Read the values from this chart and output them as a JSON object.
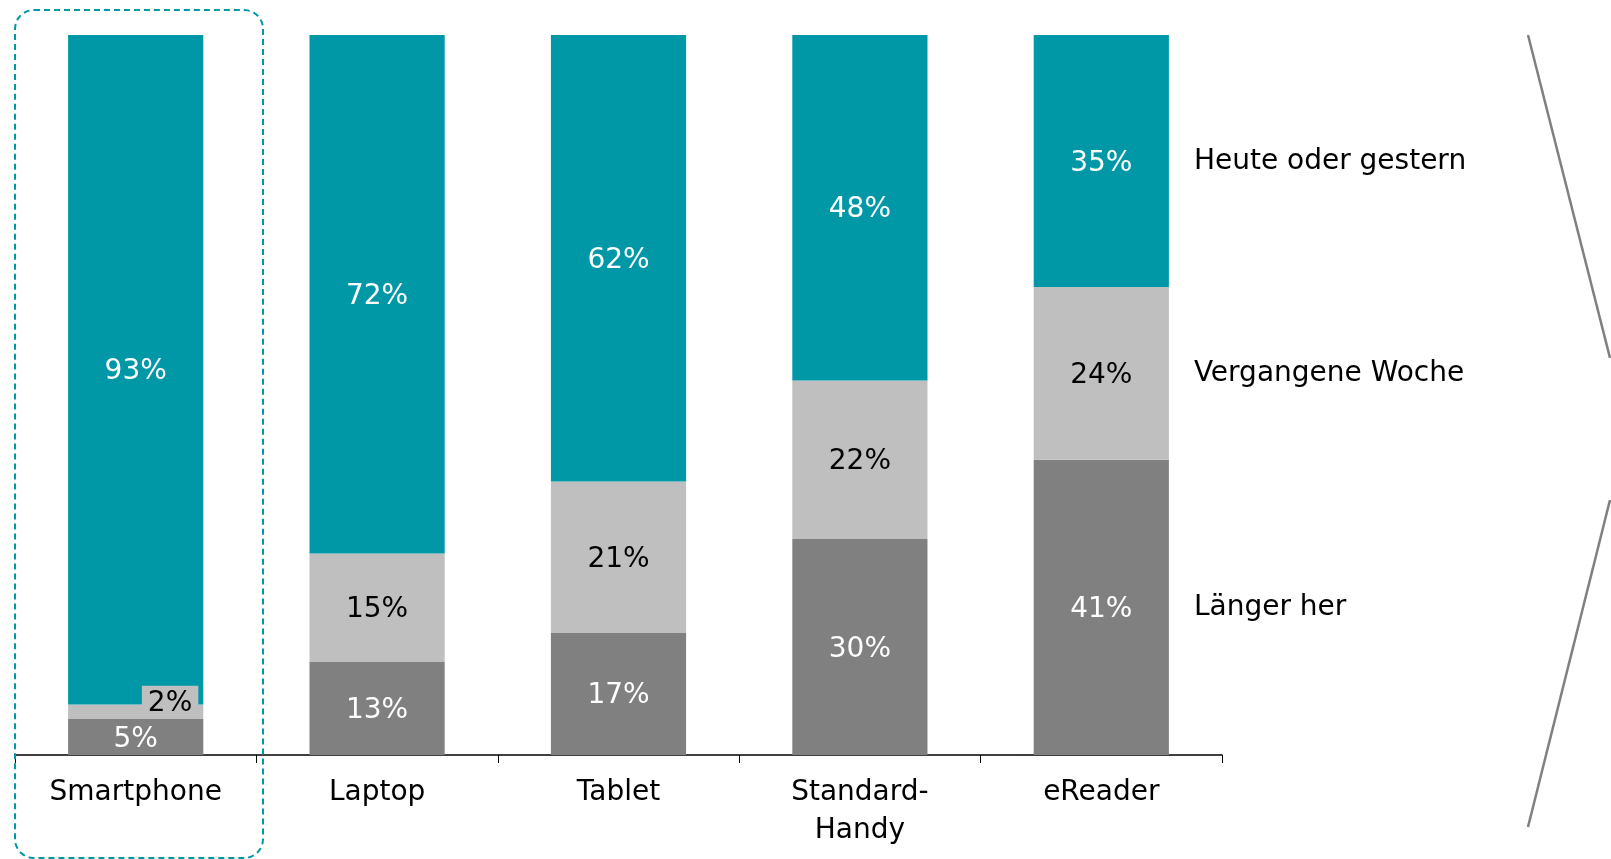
{
  "chart_data": {
    "type": "bar",
    "stacked": true,
    "legend": "right",
    "categories": [
      "Smartphone",
      "Laptop",
      "Tablet",
      "Standard-\nHandy",
      "eReader"
    ],
    "series": [
      {
        "name": "Länger her",
        "color": "#808080",
        "values": [
          5,
          13,
          17,
          30,
          41
        ],
        "value_labels": [
          "5%",
          "13%",
          "17%",
          "30%",
          "41%"
        ]
      },
      {
        "name": "Vergangene Woche",
        "color": "#bfbfbf",
        "values": [
          2,
          15,
          21,
          22,
          24
        ],
        "value_labels": [
          "2%",
          "15%",
          "21%",
          "22%",
          "24%"
        ]
      },
      {
        "name": "Heute oder gestern",
        "color": "#0097a7",
        "values": [
          93,
          72,
          62,
          48,
          35
        ],
        "value_labels": [
          "93%",
          "72%",
          "62%",
          "48%",
          "35%"
        ]
      }
    ]
  }
}
